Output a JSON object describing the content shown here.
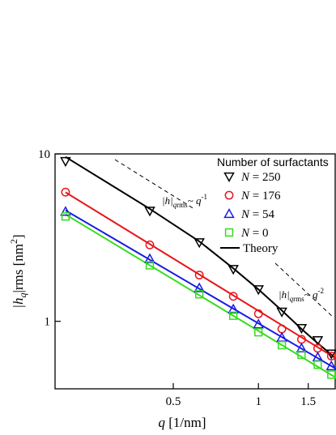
{
  "chart_data": {
    "type": "scatter",
    "log_x": true,
    "log_y": true,
    "xlabel": {
      "italic": "q",
      "rest": " [1/nm]"
    },
    "ylabel": {
      "pre": "|h",
      "sub": "q",
      "mid": "|rms [nm",
      "sup": "2",
      "post": "]"
    },
    "xlim": [
      0.191,
      1.88
    ],
    "ylim": [
      0.395,
      10
    ],
    "xticks": [
      0.5,
      1,
      1.5
    ],
    "yticks": [
      1,
      10
    ],
    "legend_title": "Number of surfactants",
    "x": [
      0.208,
      0.413,
      0.618,
      0.815,
      1.0,
      1.21,
      1.42,
      1.62,
      1.81
    ],
    "series": [
      {
        "name": "N = 250",
        "label_var": "N",
        "label_rest": " = 250",
        "marker": "triangle-down",
        "color": "#000000",
        "values": [
          9.04,
          4.57,
          2.96,
          2.05,
          1.55,
          1.14,
          0.91,
          0.77,
          0.64
        ]
      },
      {
        "name": "N = 176",
        "label_var": "N",
        "label_rest": " = 176",
        "marker": "circle",
        "color": "#e8141b",
        "values": [
          5.91,
          2.86,
          1.89,
          1.41,
          1.11,
          0.9,
          0.78,
          0.69,
          0.62
        ]
      },
      {
        "name": "N = 54",
        "label_var": "N",
        "label_rest": " = 54",
        "marker": "triangle-up",
        "color": "#1a1ae6",
        "values": [
          4.52,
          2.36,
          1.58,
          1.18,
          0.96,
          0.8,
          0.69,
          0.61,
          0.54
        ]
      },
      {
        "name": "N = 0",
        "label_var": "N",
        "label_rest": " = 0",
        "marker": "square",
        "color": "#33dd1a",
        "values": [
          4.23,
          2.16,
          1.45,
          1.08,
          0.86,
          0.72,
          0.63,
          0.55,
          0.48
        ]
      }
    ],
    "theory_label": "Theory",
    "theory_color": "#000000",
    "fits": [
      {
        "color": "#000000",
        "x": [
          0.208,
          0.413,
          0.618,
          0.815,
          1.0,
          1.21,
          1.42,
          1.62,
          1.88
        ],
        "values": [
          9.6,
          4.7,
          3.0,
          2.07,
          1.55,
          1.16,
          0.9,
          0.74,
          0.6
        ]
      },
      {
        "color": "#e8141b",
        "x": [
          0.208,
          1.88
        ],
        "values": [
          5.9,
          0.6
        ]
      },
      {
        "color": "#1a1ae6",
        "x": [
          0.208,
          1.88
        ],
        "values": [
          4.6,
          0.52
        ]
      },
      {
        "color": "#33dd1a",
        "x": [
          0.208,
          1.88
        ],
        "values": [
          4.35,
          0.46
        ]
      }
    ],
    "annotations": [
      {
        "pre": "|h|",
        "sub": "q",
        "sub2": "rms",
        "mid": "~ q",
        "sup": "-1"
      },
      {
        "pre": "|h|",
        "sub": "q",
        "sub2": "rms",
        "mid": "~ q",
        "sup": "-2"
      }
    ]
  }
}
